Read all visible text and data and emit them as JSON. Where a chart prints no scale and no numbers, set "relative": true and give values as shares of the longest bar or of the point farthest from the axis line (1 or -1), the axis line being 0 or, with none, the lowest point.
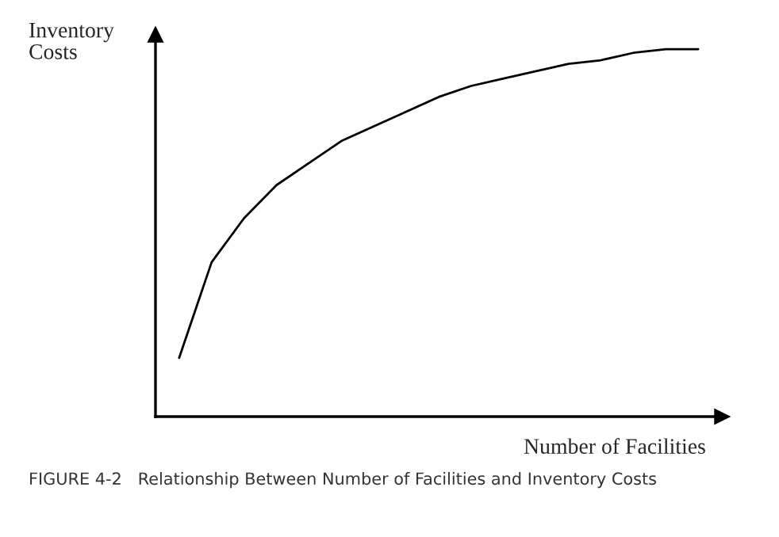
{
  "chart_data": {
    "type": "line",
    "relative": true,
    "xlabel": "Number of Facilities",
    "ylabel": "Inventory\nCosts",
    "annotations": [
      "FIGURE 4-2   Relationship Between Number of Facilities and Inventory Costs"
    ],
    "categories": [
      null,
      null,
      null,
      null,
      null,
      null,
      null,
      null,
      null,
      null,
      null,
      null,
      null,
      null,
      null,
      null,
      null
    ],
    "series": [
      {
        "color": "#000000",
        "values": [
          0.16,
          0.42,
          0.54,
          0.63,
          0.69,
          0.75,
          0.79,
          0.83,
          0.87,
          0.9,
          0.92,
          0.94,
          0.96,
          0.97,
          0.99,
          1.0,
          1.0
        ]
      }
    ],
    "grid": false,
    "legend": false,
    "marker": "none",
    "line_style": "solid"
  }
}
